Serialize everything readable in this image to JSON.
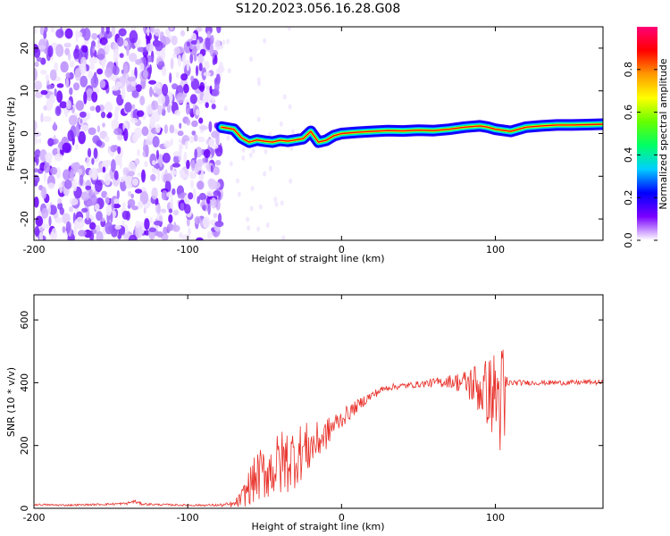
{
  "figure": {
    "title": "S120.2023.056.16.28.G08"
  },
  "chart_data": [
    {
      "type": "heatmap",
      "name": "spectrogram",
      "xlabel": "Height of straight line (km)",
      "ylabel": "Frequency (Hz)",
      "xlim": [
        -200,
        170
      ],
      "ylim": [
        -25,
        25
      ],
      "xticks": [
        -200,
        -100,
        0,
        100
      ],
      "yticks": [
        -20,
        -10,
        0,
        10,
        20
      ],
      "noise_region_x": [
        -200,
        -78
      ],
      "signal_onset_x": -78,
      "signal_trace": {
        "x": [
          -78,
          -70,
          -65,
          -60,
          -55,
          -50,
          -45,
          -40,
          -35,
          -30,
          -25,
          -20,
          -15,
          -10,
          -5,
          0,
          10,
          20,
          30,
          40,
          50,
          60,
          70,
          80,
          90,
          95,
          100,
          110,
          120,
          130,
          140,
          150,
          160,
          170
        ],
        "y": [
          1.5,
          1.0,
          -1.0,
          -2.0,
          -1.5,
          -1.8,
          -2.0,
          -1.6,
          -1.8,
          -1.5,
          -1.2,
          0.5,
          -2.0,
          -1.6,
          -0.5,
          0.0,
          0.3,
          0.5,
          0.7,
          0.6,
          0.8,
          0.7,
          1.0,
          1.5,
          1.8,
          1.5,
          1.0,
          0.5,
          1.5,
          1.8,
          2.0,
          2.0,
          2.1,
          2.2
        ]
      },
      "colorbar": {
        "label": "Normalized spectral amplitude",
        "range": [
          0,
          1
        ],
        "ticks": [
          0.0,
          0.2,
          0.4,
          0.6,
          0.8
        ],
        "tick_labels": [
          "0.0",
          "0.2",
          "0.4",
          "0.6",
          "0.8"
        ],
        "colors": [
          "#ffffff",
          "#7a00ff",
          "#0000ff",
          "#00cfff",
          "#00ff66",
          "#66ff00",
          "#ffff00",
          "#ff9900",
          "#ff0000",
          "#ff0077"
        ]
      }
    },
    {
      "type": "line",
      "name": "snr",
      "xlabel": "Height of straight line (km)",
      "ylabel": "SNR (10 * v/v)",
      "xlim": [
        -200,
        170
      ],
      "ylim": [
        0,
        680
      ],
      "xticks": [
        -200,
        -100,
        0,
        100
      ],
      "yticks": [
        0,
        200,
        400,
        600
      ],
      "color": "#e8312a",
      "series": [
        {
          "x": [
            -200,
            -180,
            -160,
            -140,
            -135,
            -130,
            -120,
            -100,
            -80,
            -70,
            -65,
            -60,
            -55,
            -50,
            -45,
            -40,
            -35,
            -30,
            -25,
            -20,
            -15,
            -10,
            -5,
            0,
            5,
            10,
            15,
            20,
            25,
            30,
            40,
            50,
            60,
            70,
            80,
            85,
            90,
            95,
            100,
            104,
            106,
            108,
            110,
            120,
            130,
            140,
            150,
            160,
            170
          ],
          "y": [
            12,
            10,
            12,
            15,
            22,
            14,
            12,
            10,
            10,
            12,
            30,
            70,
            100,
            115,
            125,
            140,
            155,
            165,
            185,
            195,
            215,
            235,
            265,
            285,
            305,
            325,
            345,
            360,
            375,
            385,
            390,
            395,
            400,
            405,
            400,
            395,
            380,
            370,
            360,
            340,
            300,
            395,
            400,
            400,
            400,
            400,
            400,
            402,
            400
          ],
          "noise_amplitude": [
            3,
            3,
            3,
            4,
            6,
            4,
            3,
            3,
            4,
            10,
            30,
            60,
            80,
            90,
            95,
            110,
            110,
            100,
            90,
            80,
            60,
            50,
            40,
            30,
            25,
            20,
            18,
            15,
            12,
            10,
            10,
            10,
            15,
            20,
            40,
            70,
            90,
            110,
            150,
            200,
            220,
            20,
            10,
            8,
            8,
            8,
            8,
            8,
            8
          ]
        }
      ]
    }
  ]
}
